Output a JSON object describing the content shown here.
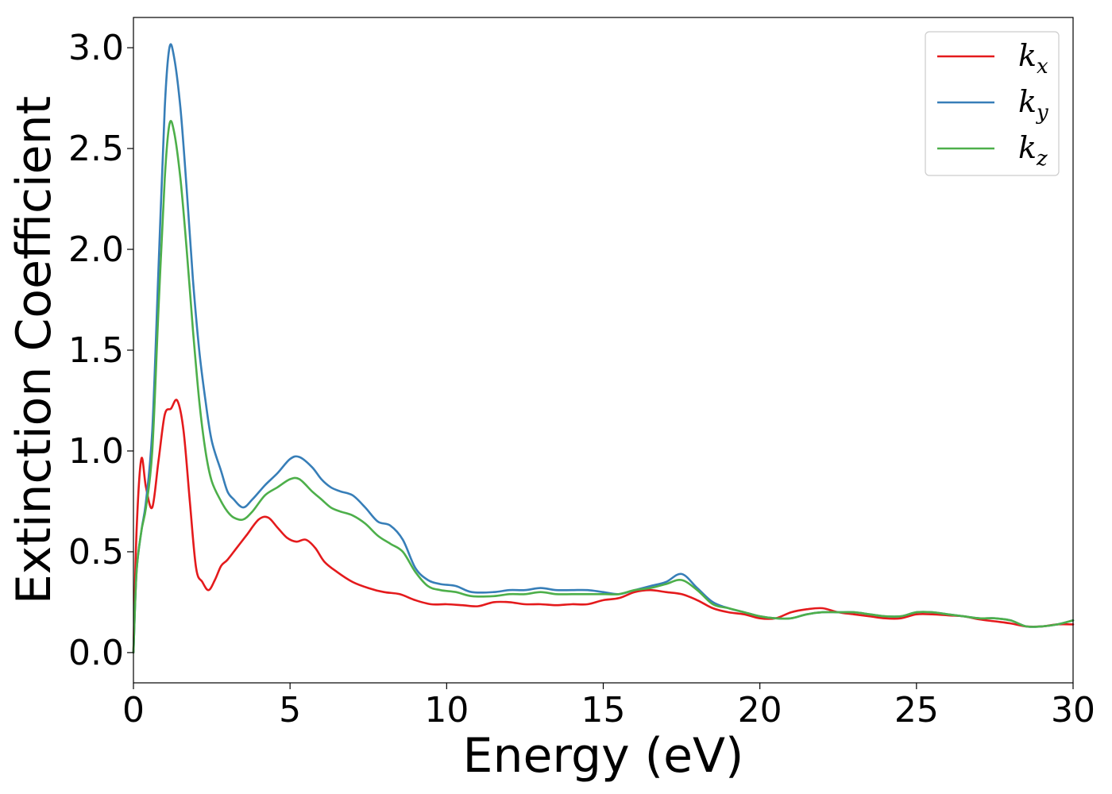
{
  "chart_data": {
    "type": "line",
    "xlabel": "Energy (eV)",
    "ylabel": "Extinction Coefficient",
    "xlim": [
      0,
      30
    ],
    "ylim": [
      -0.15,
      3.15
    ],
    "xticks": [
      0,
      5,
      10,
      15,
      20,
      25,
      30
    ],
    "xtick_labels": [
      "0",
      "5",
      "10",
      "15",
      "20",
      "25",
      "30"
    ],
    "yticks": [
      0.0,
      0.5,
      1.0,
      1.5,
      2.0,
      2.5,
      3.0
    ],
    "ytick_labels": [
      "0.0",
      "0.5",
      "1.0",
      "1.5",
      "2.0",
      "2.5",
      "3.0"
    ],
    "grid": false,
    "legend_position": "top-right",
    "series": [
      {
        "name": "k_x",
        "legend_main": "k",
        "legend_sub": "x",
        "color": "#e41a1c",
        "x": [
          0,
          0.1,
          0.25,
          0.4,
          0.6,
          0.8,
          1.0,
          1.2,
          1.4,
          1.6,
          1.8,
          2.0,
          2.2,
          2.4,
          2.6,
          2.8,
          3.0,
          3.3,
          3.6,
          4.0,
          4.3,
          4.6,
          4.9,
          5.2,
          5.5,
          5.8,
          6.1,
          6.5,
          7.0,
          7.5,
          8.0,
          8.5,
          9.0,
          9.5,
          10,
          10.5,
          11,
          11.5,
          12,
          12.5,
          13,
          13.5,
          14,
          14.5,
          15,
          15.5,
          16,
          16.5,
          17,
          17.5,
          18,
          18.5,
          19,
          19.5,
          20,
          20.5,
          21,
          21.5,
          22,
          22.5,
          23,
          23.5,
          24,
          24.5,
          25,
          25.5,
          26,
          26.5,
          27,
          27.5,
          28,
          28.5,
          29,
          29.5,
          30
        ],
        "values": [
          0.0,
          0.6,
          0.96,
          0.82,
          0.72,
          0.95,
          1.18,
          1.21,
          1.25,
          1.1,
          0.75,
          0.42,
          0.35,
          0.31,
          0.36,
          0.43,
          0.46,
          0.52,
          0.58,
          0.66,
          0.67,
          0.62,
          0.57,
          0.55,
          0.56,
          0.52,
          0.45,
          0.4,
          0.35,
          0.32,
          0.3,
          0.29,
          0.26,
          0.24,
          0.24,
          0.235,
          0.23,
          0.25,
          0.25,
          0.24,
          0.24,
          0.235,
          0.24,
          0.24,
          0.26,
          0.27,
          0.3,
          0.31,
          0.3,
          0.29,
          0.26,
          0.22,
          0.2,
          0.19,
          0.17,
          0.17,
          0.2,
          0.215,
          0.22,
          0.2,
          0.19,
          0.18,
          0.17,
          0.17,
          0.19,
          0.19,
          0.185,
          0.18,
          0.165,
          0.155,
          0.145,
          0.13,
          0.13,
          0.14,
          0.14
        ]
      },
      {
        "name": "k_y",
        "legend_main": "k",
        "legend_sub": "y",
        "color": "#377eb8",
        "x": [
          0,
          0.1,
          0.25,
          0.4,
          0.6,
          0.8,
          1.0,
          1.15,
          1.3,
          1.5,
          1.7,
          1.9,
          2.1,
          2.3,
          2.5,
          2.8,
          3.0,
          3.2,
          3.5,
          3.8,
          4.2,
          4.6,
          5.0,
          5.3,
          5.7,
          6.0,
          6.3,
          6.6,
          7.0,
          7.4,
          7.8,
          8.2,
          8.6,
          9.0,
          9.4,
          9.8,
          10.3,
          10.8,
          11.5,
          12,
          12.5,
          13,
          13.5,
          14,
          14.5,
          15,
          15.5,
          16,
          16.5,
          17,
          17.5,
          18,
          18.5,
          19,
          19.5,
          20,
          20.5,
          21,
          21.5,
          22,
          22.5,
          23,
          23.5,
          24,
          24.5,
          25,
          25.5,
          26,
          26.5,
          27,
          27.5,
          28,
          28.5,
          29,
          29.5,
          30
        ],
        "values": [
          0.0,
          0.4,
          0.6,
          0.75,
          1.1,
          1.9,
          2.7,
          3.0,
          2.95,
          2.7,
          2.3,
          1.85,
          1.5,
          1.25,
          1.05,
          0.9,
          0.8,
          0.76,
          0.72,
          0.76,
          0.83,
          0.89,
          0.96,
          0.97,
          0.92,
          0.86,
          0.82,
          0.8,
          0.78,
          0.72,
          0.65,
          0.63,
          0.56,
          0.42,
          0.36,
          0.34,
          0.33,
          0.3,
          0.3,
          0.31,
          0.31,
          0.32,
          0.31,
          0.31,
          0.31,
          0.3,
          0.29,
          0.31,
          0.33,
          0.35,
          0.39,
          0.32,
          0.25,
          0.22,
          0.2,
          0.18,
          0.17,
          0.17,
          0.19,
          0.2,
          0.2,
          0.2,
          0.19,
          0.18,
          0.18,
          0.2,
          0.2,
          0.19,
          0.18,
          0.17,
          0.17,
          0.16,
          0.13,
          0.13,
          0.14,
          0.16
        ]
      },
      {
        "name": "k_z",
        "legend_main": "k",
        "legend_sub": "z",
        "color": "#4daf4a",
        "x": [
          0,
          0.1,
          0.25,
          0.4,
          0.6,
          0.8,
          1.0,
          1.15,
          1.3,
          1.5,
          1.7,
          1.9,
          2.1,
          2.3,
          2.5,
          2.8,
          3.0,
          3.2,
          3.5,
          3.8,
          4.2,
          4.6,
          5.0,
          5.3,
          5.7,
          6.0,
          6.3,
          6.6,
          7.0,
          7.4,
          7.8,
          8.2,
          8.6,
          9.0,
          9.4,
          9.8,
          10.3,
          10.8,
          11.5,
          12,
          12.5,
          13,
          13.5,
          14,
          14.5,
          15,
          15.5,
          16,
          16.5,
          17,
          17.5,
          18,
          18.5,
          19,
          19.5,
          20,
          20.5,
          21,
          21.5,
          22,
          22.5,
          23,
          23.5,
          24,
          24.5,
          25,
          25.5,
          26,
          26.5,
          27,
          27.5,
          28,
          28.5,
          29,
          29.5,
          30
        ],
        "values": [
          0.0,
          0.4,
          0.6,
          0.72,
          1.0,
          1.7,
          2.35,
          2.62,
          2.58,
          2.35,
          2.0,
          1.6,
          1.25,
          1.0,
          0.85,
          0.75,
          0.7,
          0.67,
          0.66,
          0.7,
          0.78,
          0.82,
          0.86,
          0.86,
          0.8,
          0.76,
          0.72,
          0.7,
          0.68,
          0.64,
          0.58,
          0.54,
          0.5,
          0.4,
          0.33,
          0.31,
          0.3,
          0.28,
          0.28,
          0.29,
          0.29,
          0.3,
          0.29,
          0.29,
          0.29,
          0.29,
          0.29,
          0.31,
          0.32,
          0.34,
          0.36,
          0.31,
          0.24,
          0.22,
          0.2,
          0.18,
          0.17,
          0.17,
          0.19,
          0.2,
          0.2,
          0.2,
          0.19,
          0.18,
          0.18,
          0.2,
          0.2,
          0.19,
          0.18,
          0.17,
          0.17,
          0.16,
          0.13,
          0.13,
          0.14,
          0.16
        ]
      }
    ]
  }
}
